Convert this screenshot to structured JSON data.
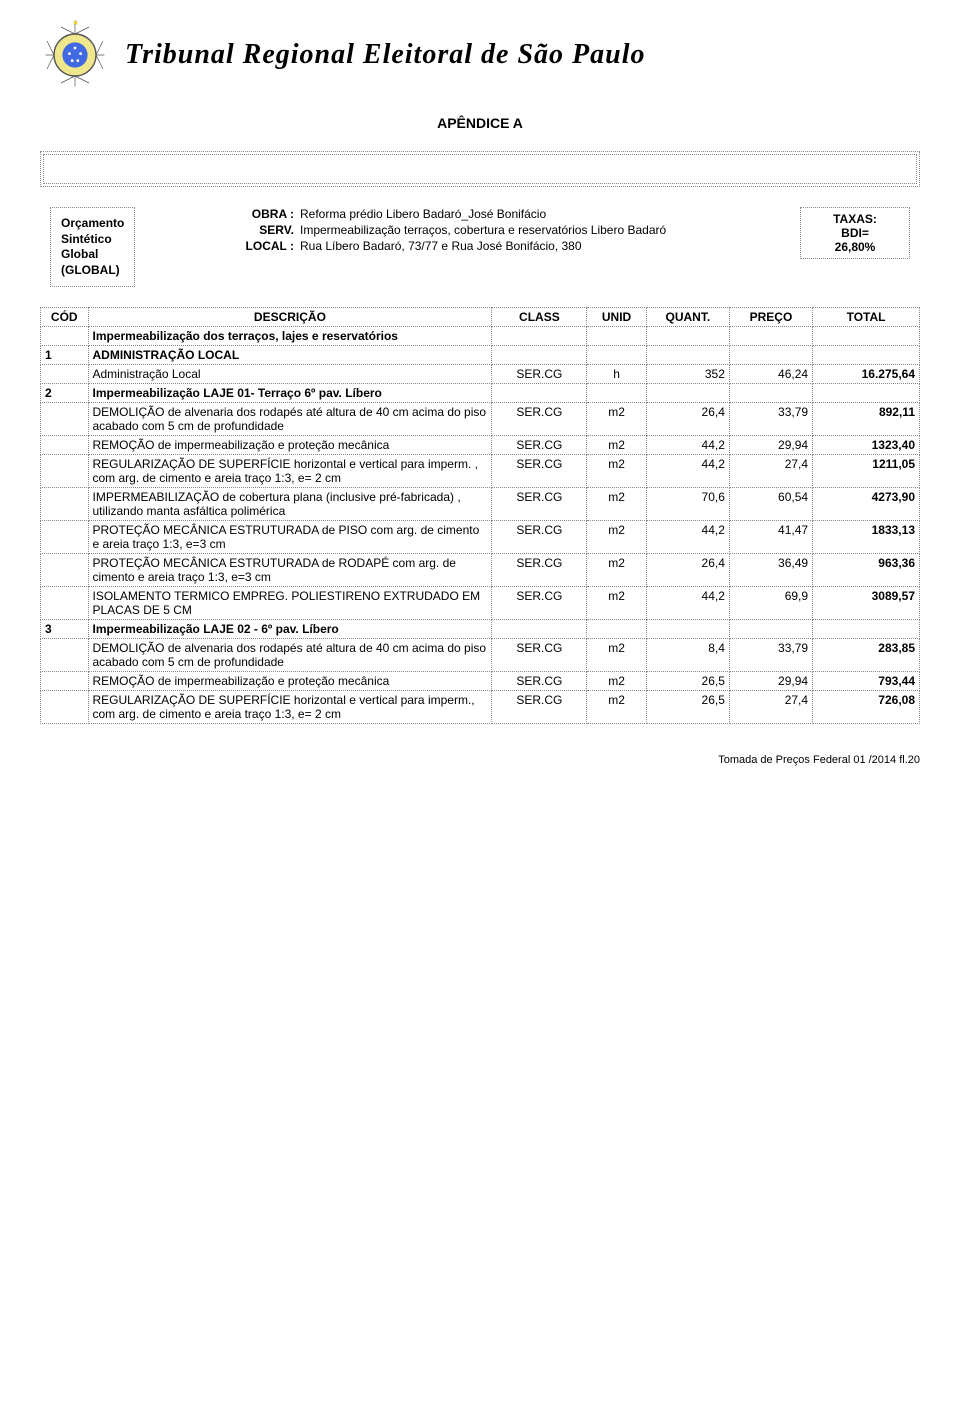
{
  "header": {
    "main_title": "Tribunal Regional Eleitoral de São Paulo",
    "appendix": "APÊNDICE A"
  },
  "info": {
    "left_lines": [
      "Orçamento",
      "Sintético",
      "Global",
      "(GLOBAL)"
    ],
    "obra_label": "OBRA :",
    "obra_value": "Reforma prédio Libero Badaró_José Bonifácio",
    "serv_label": "SERV.",
    "serv_value": "Impermeabilização terraços, cobertura e reservatórios Libero Badaró",
    "local_label": "LOCAL :",
    "local_value": "Rua Líbero Badaró, 73/77 e Rua José Bonifácio, 380",
    "taxas_label": "TAXAS:",
    "bdi_label": "BDI=",
    "bdi_value": "26,80%"
  },
  "table": {
    "headers": [
      "CÓD",
      "DESCRIÇÃO",
      "CLASS",
      "UNID",
      "QUANT.",
      "PREÇO",
      "TOTAL"
    ],
    "rows": [
      {
        "cod": "",
        "desc": "Impermeabilização dos terraços, lajes e reservatórios",
        "class": "",
        "unid": "",
        "quant": "",
        "preco": "",
        "total": "",
        "bold": true
      },
      {
        "cod": "1",
        "desc": "ADMINISTRAÇÃO LOCAL",
        "class": "",
        "unid": "",
        "quant": "",
        "preco": "",
        "total": "",
        "bold": true
      },
      {
        "cod": "",
        "desc": "Administração Local",
        "class": "SER.CG",
        "unid": "h",
        "quant": "352",
        "preco": "46,24",
        "total": "16.275,64"
      },
      {
        "cod": "2",
        "desc": "Impermeabilização LAJE 01- Terraço 6º pav. Líbero",
        "class": "",
        "unid": "",
        "quant": "",
        "preco": "",
        "total": "",
        "bold": true
      },
      {
        "cod": "",
        "desc": "DEMOLIÇÃO de alvenaria dos rodapés até altura de 40 cm acima do piso acabado com 5 cm de profundidade",
        "class": "SER.CG",
        "unid": "m2",
        "quant": "26,4",
        "preco": "33,79",
        "total": "892,11"
      },
      {
        "cod": "",
        "desc": "REMOÇÃO de impermeabilização e proteção mecânica",
        "class": "SER.CG",
        "unid": "m2",
        "quant": "44,2",
        "preco": "29,94",
        "total": "1323,40"
      },
      {
        "cod": "",
        "desc": "REGULARIZAÇÃO DE SUPERFÍCIE horizontal e vertical para imperm. , com arg. de cimento e areia traço 1:3, e= 2 cm",
        "class": "SER.CG",
        "unid": "m2",
        "quant": "44,2",
        "preco": "27,4",
        "total": "1211,05"
      },
      {
        "cod": "",
        "desc": "IMPERMEABILIZAÇÃO de cobertura plana (inclusive pré-fabricada) , utilizando manta asfáltica polimérica",
        "class": "SER.CG",
        "unid": "m2",
        "quant": "70,6",
        "preco": "60,54",
        "total": "4273,90"
      },
      {
        "cod": "",
        "desc": "PROTEÇÃO MECÂNICA ESTRUTURADA de PISO com arg. de cimento e areia traço 1:3, e=3 cm",
        "class": "SER.CG",
        "unid": "m2",
        "quant": "44,2",
        "preco": "41,47",
        "total": "1833,13"
      },
      {
        "cod": "",
        "desc": "PROTEÇÃO MECÂNICA ESTRUTURADA de RODAPÉ com arg. de cimento e areia traço 1:3, e=3 cm",
        "class": "SER.CG",
        "unid": "m2",
        "quant": "26,4",
        "preco": "36,49",
        "total": "963,36"
      },
      {
        "cod": "",
        "desc": "ISOLAMENTO TERMICO EMPREG. POLIESTIRENO EXTRUDADO EM PLACAS DE 5 CM",
        "class": "SER.CG",
        "unid": "m2",
        "quant": "44,2",
        "preco": "69,9",
        "total": "3089,57"
      },
      {
        "cod": "3",
        "desc": "Impermeabilização LAJE 02 - 6º pav. Líbero",
        "class": "",
        "unid": "",
        "quant": "",
        "preco": "",
        "total": "",
        "bold": true
      },
      {
        "cod": "",
        "desc": "DEMOLIÇÃO de alvenaria dos rodapés até altura de 40 cm acima do piso acabado com 5 cm de profundidade",
        "class": "SER.CG",
        "unid": "m2",
        "quant": "8,4",
        "preco": "33,79",
        "total": "283,85"
      },
      {
        "cod": "",
        "desc": "REMOÇÃO de impermeabilização e proteção mecânica",
        "class": "SER.CG",
        "unid": "m2",
        "quant": "26,5",
        "preco": "29,94",
        "total": "793,44"
      },
      {
        "cod": "",
        "desc": "REGULARIZAÇÃO DE SUPERFÍCIE horizontal e vertical para imperm., com arg. de cimento e areia traço 1:3, e= 2 cm",
        "class": "SER.CG",
        "unid": "m2",
        "quant": "26,5",
        "preco": "27,4",
        "total": "726,08"
      }
    ]
  },
  "footer": "Tomada de Preços Federal  01 /2014 fl.20"
}
